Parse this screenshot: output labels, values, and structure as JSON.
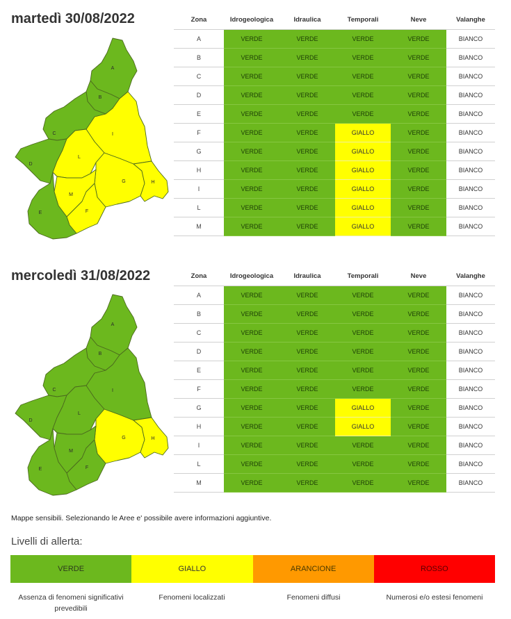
{
  "colors": {
    "verde": "#6cb81e",
    "giallo": "#ffff00",
    "arancione": "#ff9900",
    "rosso": "#ff0000"
  },
  "headers": [
    "Zona",
    "Idrogeologica",
    "Idraulica",
    "Temporali",
    "Neve",
    "Valanghe"
  ],
  "days": [
    {
      "title": "martedì 30/08/2022",
      "map_zones": {
        "A": "verde",
        "B": "verde",
        "C": "verde",
        "D": "verde",
        "E": "verde",
        "F": "giallo",
        "G": "giallo",
        "H": "giallo",
        "I": "giallo",
        "L": "giallo",
        "M": "giallo"
      },
      "rows": [
        {
          "zona": "A",
          "idrogeologica": "VERDE",
          "idraulica": "VERDE",
          "temporali": "VERDE",
          "neve": "VERDE",
          "valanghe": "BIANCO"
        },
        {
          "zona": "B",
          "idrogeologica": "VERDE",
          "idraulica": "VERDE",
          "temporali": "VERDE",
          "neve": "VERDE",
          "valanghe": "BIANCO"
        },
        {
          "zona": "C",
          "idrogeologica": "VERDE",
          "idraulica": "VERDE",
          "temporali": "VERDE",
          "neve": "VERDE",
          "valanghe": "BIANCO"
        },
        {
          "zona": "D",
          "idrogeologica": "VERDE",
          "idraulica": "VERDE",
          "temporali": "VERDE",
          "neve": "VERDE",
          "valanghe": "BIANCO"
        },
        {
          "zona": "E",
          "idrogeologica": "VERDE",
          "idraulica": "VERDE",
          "temporali": "VERDE",
          "neve": "VERDE",
          "valanghe": "BIANCO"
        },
        {
          "zona": "F",
          "idrogeologica": "VERDE",
          "idraulica": "VERDE",
          "temporali": "GIALLO",
          "neve": "VERDE",
          "valanghe": "BIANCO"
        },
        {
          "zona": "G",
          "idrogeologica": "VERDE",
          "idraulica": "VERDE",
          "temporali": "GIALLO",
          "neve": "VERDE",
          "valanghe": "BIANCO"
        },
        {
          "zona": "H",
          "idrogeologica": "VERDE",
          "idraulica": "VERDE",
          "temporali": "GIALLO",
          "neve": "VERDE",
          "valanghe": "BIANCO"
        },
        {
          "zona": "I",
          "idrogeologica": "VERDE",
          "idraulica": "VERDE",
          "temporali": "GIALLO",
          "neve": "VERDE",
          "valanghe": "BIANCO"
        },
        {
          "zona": "L",
          "idrogeologica": "VERDE",
          "idraulica": "VERDE",
          "temporali": "GIALLO",
          "neve": "VERDE",
          "valanghe": "BIANCO"
        },
        {
          "zona": "M",
          "idrogeologica": "VERDE",
          "idraulica": "VERDE",
          "temporali": "GIALLO",
          "neve": "VERDE",
          "valanghe": "BIANCO"
        }
      ]
    },
    {
      "title": "mercoledì 31/08/2022",
      "map_zones": {
        "A": "verde",
        "B": "verde",
        "C": "verde",
        "D": "verde",
        "E": "verde",
        "F": "verde",
        "G": "giallo",
        "H": "giallo",
        "I": "verde",
        "L": "verde",
        "M": "verde"
      },
      "rows": [
        {
          "zona": "A",
          "idrogeologica": "VERDE",
          "idraulica": "VERDE",
          "temporali": "VERDE",
          "neve": "VERDE",
          "valanghe": "BIANCO"
        },
        {
          "zona": "B",
          "idrogeologica": "VERDE",
          "idraulica": "VERDE",
          "temporali": "VERDE",
          "neve": "VERDE",
          "valanghe": "BIANCO"
        },
        {
          "zona": "C",
          "idrogeologica": "VERDE",
          "idraulica": "VERDE",
          "temporali": "VERDE",
          "neve": "VERDE",
          "valanghe": "BIANCO"
        },
        {
          "zona": "D",
          "idrogeologica": "VERDE",
          "idraulica": "VERDE",
          "temporali": "VERDE",
          "neve": "VERDE",
          "valanghe": "BIANCO"
        },
        {
          "zona": "E",
          "idrogeologica": "VERDE",
          "idraulica": "VERDE",
          "temporali": "VERDE",
          "neve": "VERDE",
          "valanghe": "BIANCO"
        },
        {
          "zona": "F",
          "idrogeologica": "VERDE",
          "idraulica": "VERDE",
          "temporali": "VERDE",
          "neve": "VERDE",
          "valanghe": "BIANCO"
        },
        {
          "zona": "G",
          "idrogeologica": "VERDE",
          "idraulica": "VERDE",
          "temporali": "GIALLO",
          "neve": "VERDE",
          "valanghe": "BIANCO"
        },
        {
          "zona": "H",
          "idrogeologica": "VERDE",
          "idraulica": "VERDE",
          "temporali": "GIALLO",
          "neve": "VERDE",
          "valanghe": "BIANCO"
        },
        {
          "zona": "I",
          "idrogeologica": "VERDE",
          "idraulica": "VERDE",
          "temporali": "VERDE",
          "neve": "VERDE",
          "valanghe": "BIANCO"
        },
        {
          "zona": "L",
          "idrogeologica": "VERDE",
          "idraulica": "VERDE",
          "temporali": "VERDE",
          "neve": "VERDE",
          "valanghe": "BIANCO"
        },
        {
          "zona": "M",
          "idrogeologica": "VERDE",
          "idraulica": "VERDE",
          "temporali": "VERDE",
          "neve": "VERDE",
          "valanghe": "BIANCO"
        }
      ]
    }
  ],
  "note": "Mappe sensibili. Selezionando le Aree e' possibile avere informazioni aggiuntive.",
  "legend": {
    "title": "Livelli di allerta:",
    "levels": [
      {
        "label": "VERDE",
        "description": "Assenza di fenomeni significativi prevedibili",
        "color": "#6cb81e",
        "text_color": "#2d3b1d"
      },
      {
        "label": "GIALLO",
        "description": "Fenomeni localizzati",
        "color": "#ffff00",
        "text_color": "#333333"
      },
      {
        "label": "ARANCIONE",
        "description": "Fenomeni diffusi",
        "color": "#ff9900",
        "text_color": "#4a3a00"
      },
      {
        "label": "ROSSO",
        "description": "Numerosi e/o estesi fenomeni",
        "color": "#ff0000",
        "text_color": "#5a0000"
      }
    ]
  }
}
